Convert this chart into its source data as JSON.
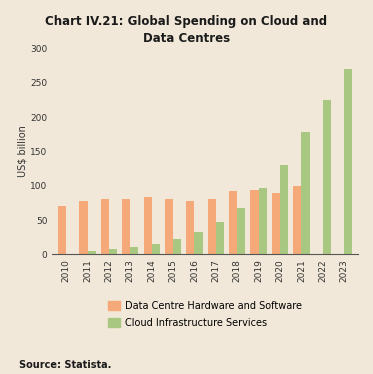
{
  "title": "Chart IV.21: Global Spending on Cloud and\nData Centres",
  "ylabel": "US$ billion",
  "source": "Source: Statista.",
  "years": [
    "2010",
    "2011",
    "2012",
    "2013",
    "2014",
    "2015",
    "2016",
    "2017",
    "2018",
    "2019",
    "2020",
    "2021",
    "2022",
    "2023"
  ],
  "data_centre": [
    71,
    78,
    81,
    81,
    83,
    81,
    78,
    81,
    93,
    94,
    90,
    100,
    null,
    null
  ],
  "cloud": [
    1,
    5,
    8,
    10,
    15,
    23,
    33,
    47,
    68,
    97,
    130,
    178,
    225,
    270
  ],
  "bar_color_dc": "#F5A878",
  "bar_color_cloud": "#A8C882",
  "background_color": "#F2E8D9",
  "legend_dc": "Data Centre Hardware and Software",
  "legend_cloud": "Cloud Infrastructure Services",
  "ylim": [
    0,
    300
  ],
  "yticks": [
    0,
    50,
    100,
    150,
    200,
    250,
    300
  ]
}
